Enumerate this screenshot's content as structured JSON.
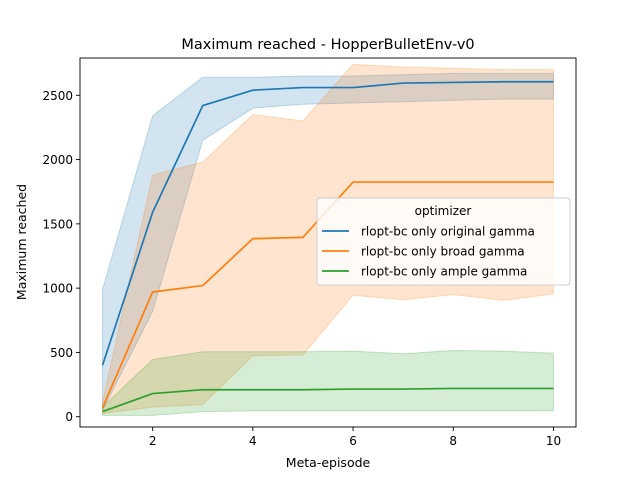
{
  "chart_data": {
    "type": "line",
    "title": "Maximum reached - HopperBulletEnv-v0",
    "xlabel": "Meta-episode",
    "ylabel": "Maximum reached",
    "xlim": [
      0.55,
      10.45
    ],
    "ylim": [
      -80,
      2790
    ],
    "xticks": [
      2,
      4,
      6,
      8,
      10
    ],
    "yticks": [
      0,
      500,
      1000,
      1500,
      2000,
      2500
    ],
    "grid": false,
    "legend": {
      "title": "optimizer",
      "placement": "center-right"
    },
    "x": [
      1,
      2,
      3,
      4,
      5,
      6,
      7,
      8,
      9,
      10
    ],
    "series": [
      {
        "name": "rlopt-bc only original gamma",
        "color": "#1f77b4",
        "values": [
          400,
          1590,
          2420,
          2540,
          2560,
          2560,
          2595,
          2600,
          2605,
          2605
        ],
        "lower": [
          50,
          820,
          2150,
          2400,
          2430,
          2440,
          2450,
          2460,
          2470,
          2470
        ],
        "upper": [
          990,
          2340,
          2640,
          2640,
          2650,
          2650,
          2660,
          2670,
          2670,
          2670
        ]
      },
      {
        "name": "rlopt-bc only broad gamma",
        "color": "#ff7f0e",
        "values": [
          70,
          970,
          1020,
          1385,
          1395,
          1825,
          1825,
          1825,
          1825,
          1825
        ],
        "lower": [
          25,
          75,
          95,
          475,
          480,
          945,
          910,
          950,
          905,
          955
        ],
        "upper": [
          115,
          1880,
          1980,
          2350,
          2300,
          2740,
          2720,
          2710,
          2700,
          2700
        ]
      },
      {
        "name": "rlopt-bc only ample gamma",
        "color": "#2ca02c",
        "values": [
          40,
          180,
          210,
          210,
          210,
          215,
          215,
          220,
          220,
          220
        ],
        "lower": [
          10,
          10,
          40,
          45,
          45,
          45,
          45,
          45,
          45,
          45
        ],
        "upper": [
          75,
          445,
          505,
          505,
          505,
          510,
          490,
          515,
          510,
          495
        ]
      }
    ]
  }
}
